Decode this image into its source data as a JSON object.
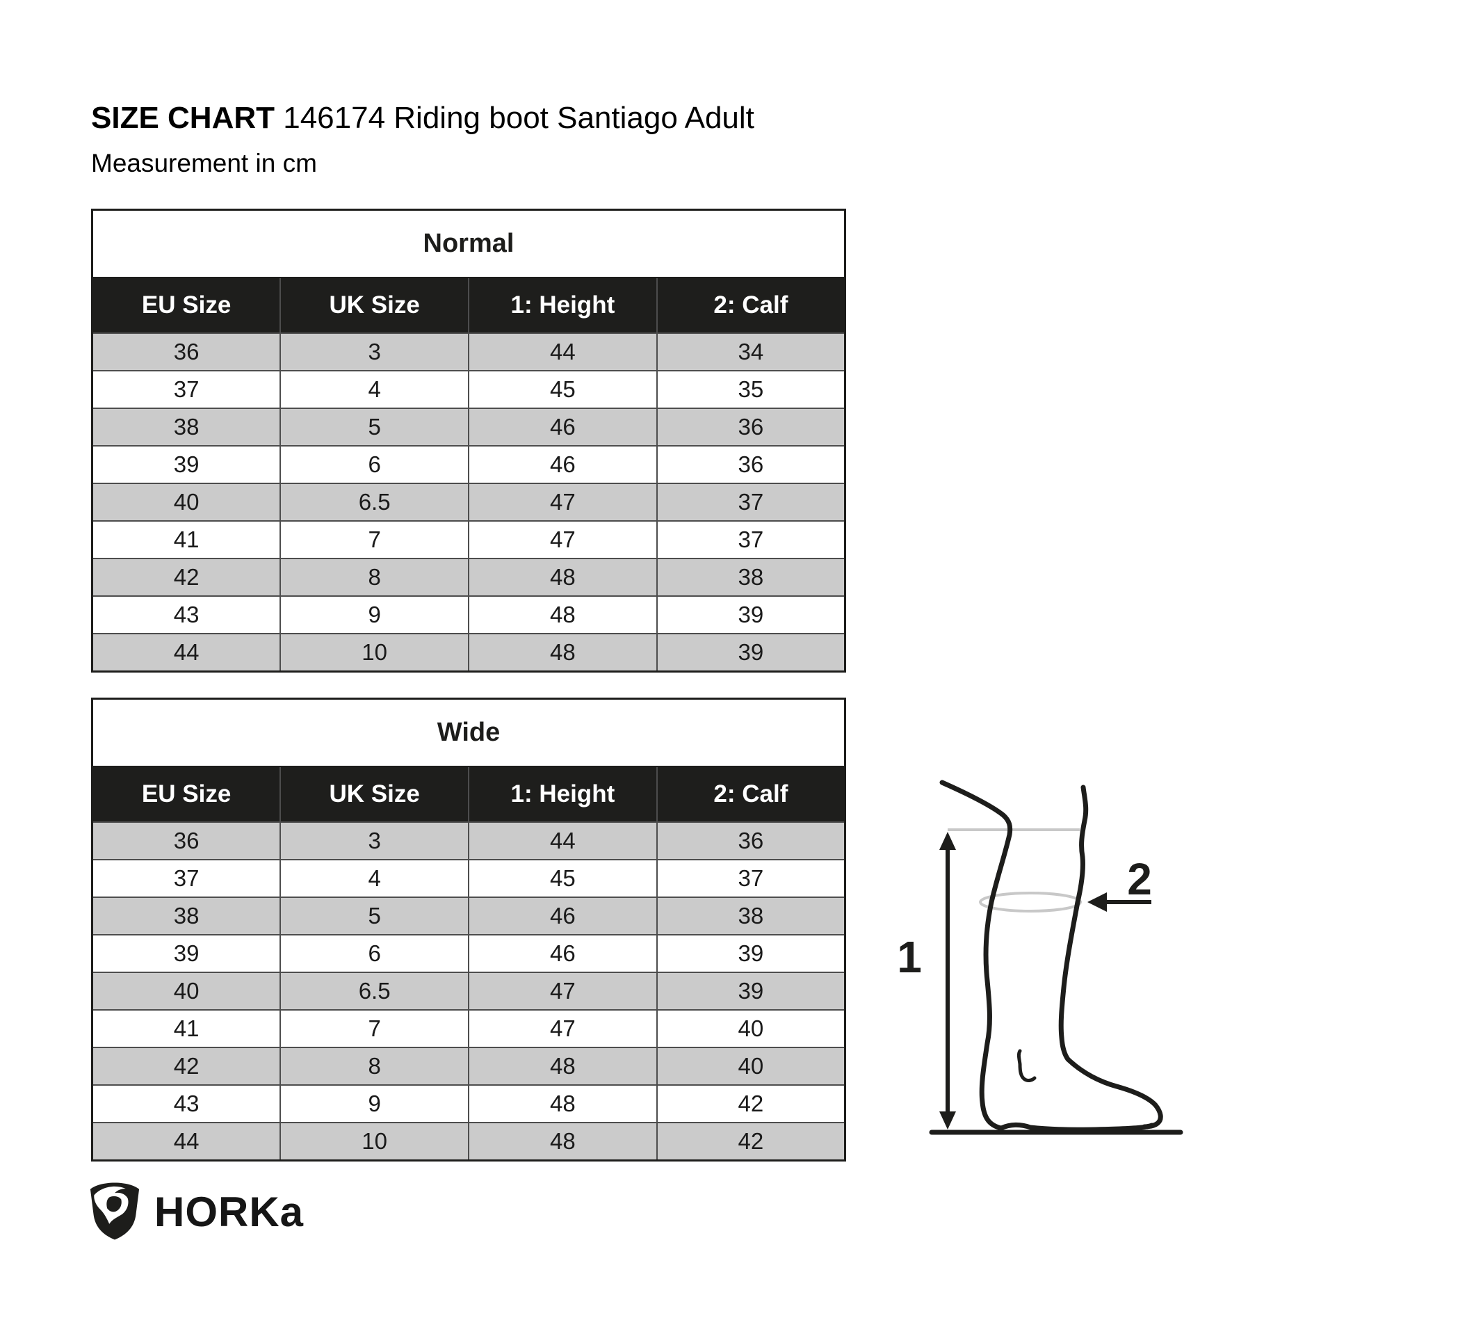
{
  "header": {
    "title_bold": "SIZE CHART",
    "title_product": "146174 Riding boot Santiago Adult",
    "subtitle": "Measurement in cm"
  },
  "columns": [
    "EU Size",
    "UK Size",
    "1: Height",
    "2: Calf"
  ],
  "tables": [
    {
      "title": "Normal",
      "rows": [
        [
          "36",
          "3",
          "44",
          "34"
        ],
        [
          "37",
          "4",
          "45",
          "35"
        ],
        [
          "38",
          "5",
          "46",
          "36"
        ],
        [
          "39",
          "6",
          "46",
          "36"
        ],
        [
          "40",
          "6.5",
          "47",
          "37"
        ],
        [
          "41",
          "7",
          "47",
          "37"
        ],
        [
          "42",
          "8",
          "48",
          "38"
        ],
        [
          "43",
          "9",
          "48",
          "39"
        ],
        [
          "44",
          "10",
          "48",
          "39"
        ]
      ]
    },
    {
      "title": "Wide",
      "rows": [
        [
          "36",
          "3",
          "44",
          "36"
        ],
        [
          "37",
          "4",
          "45",
          "37"
        ],
        [
          "38",
          "5",
          "46",
          "38"
        ],
        [
          "39",
          "6",
          "46",
          "39"
        ],
        [
          "40",
          "6.5",
          "47",
          "39"
        ],
        [
          "41",
          "7",
          "47",
          "40"
        ],
        [
          "42",
          "8",
          "48",
          "40"
        ],
        [
          "43",
          "9",
          "48",
          "42"
        ],
        [
          "44",
          "10",
          "48",
          "42"
        ]
      ]
    }
  ],
  "diagram": {
    "height_label": "1",
    "calf_label": "2"
  },
  "logo": {
    "brand": "HORKa"
  },
  "colors": {
    "table_header_bg": "#1e1e1c",
    "row_alt_bg": "#cbcbcb",
    "row_bg": "#ffffff",
    "grid_border": "#4d4d4d",
    "outer_border": "#1d1d1b",
    "diagram_gray": "#c8c8c8",
    "ink": "#1d1d1b"
  }
}
